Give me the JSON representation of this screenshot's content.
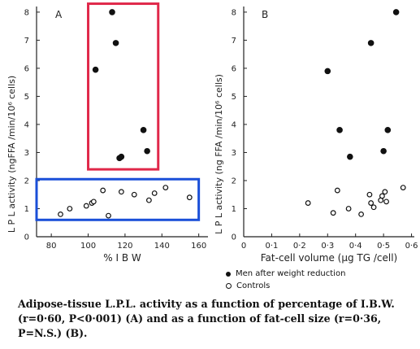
{
  "chart_data": [
    {
      "type": "scatter",
      "panel_label": "A",
      "xlabel": "% I B W",
      "ylabel": "L P L activity (ngFFA /min/10⁶ cells)",
      "xlim": [
        72,
        165
      ],
      "ylim": [
        0,
        8.2
      ],
      "xticks": [
        80,
        100,
        120,
        140,
        160
      ],
      "yticks": [
        1,
        2,
        3,
        4,
        5,
        6,
        7,
        8
      ],
      "series": [
        {
          "name": "Men after weight reduction",
          "marker": "filled",
          "points": [
            [
              104,
              5.95
            ],
            [
              113,
              8.0
            ],
            [
              115,
              6.9
            ],
            [
              117,
              2.8
            ],
            [
              118,
              2.85
            ],
            [
              130,
              3.8
            ],
            [
              132,
              3.05
            ]
          ]
        },
        {
          "name": "Controls",
          "marker": "open",
          "points": [
            [
              85,
              0.8
            ],
            [
              90,
              1.0
            ],
            [
              99,
              1.1
            ],
            [
              102,
              1.2
            ],
            [
              103,
              1.25
            ],
            [
              108,
              1.65
            ],
            [
              111,
              0.75
            ],
            [
              118,
              1.6
            ],
            [
              125,
              1.5
            ],
            [
              133,
              1.3
            ],
            [
              136,
              1.55
            ],
            [
              142,
              1.75
            ],
            [
              155,
              1.4
            ]
          ]
        }
      ],
      "highlight_boxes": [
        {
          "color": "#e0284a",
          "x_range": [
            100,
            138
          ],
          "y_range": [
            2.4,
            8.3
          ]
        },
        {
          "color": "#1a4fd8",
          "x_range": [
            72,
            160
          ],
          "y_range": [
            0.6,
            2.05
          ]
        }
      ]
    },
    {
      "type": "scatter",
      "panel_label": "B",
      "xlabel": "Fat-cell volume (µg TG /cell)",
      "ylabel": "L P L activity (ng FFA /min/10⁶ cells)",
      "xlim": [
        0.0,
        0.61
      ],
      "ylim": [
        0,
        8.2
      ],
      "xticks": [
        0.0,
        0.1,
        0.2,
        0.3,
        0.4,
        0.5,
        0.6
      ],
      "xtick_labels": [
        "0",
        "0·1",
        "0·2",
        "0·3",
        "0·4",
        "0·5",
        "0·6"
      ],
      "yticks": [
        1,
        2,
        3,
        4,
        5,
        6,
        7,
        8
      ],
      "series": [
        {
          "name": "Men after weight reduction",
          "marker": "filled",
          "points": [
            [
              0.3,
              5.9
            ],
            [
              0.343,
              3.8
            ],
            [
              0.38,
              2.85
            ],
            [
              0.455,
              6.9
            ],
            [
              0.5,
              3.05
            ],
            [
              0.515,
              3.8
            ],
            [
              0.545,
              8.0
            ]
          ]
        },
        {
          "name": "Controls",
          "marker": "open",
          "points": [
            [
              0.23,
              1.2
            ],
            [
              0.32,
              0.85
            ],
            [
              0.335,
              1.65
            ],
            [
              0.375,
              1.0
            ],
            [
              0.42,
              0.8
            ],
            [
              0.45,
              1.5
            ],
            [
              0.455,
              1.2
            ],
            [
              0.465,
              1.05
            ],
            [
              0.49,
              1.3
            ],
            [
              0.495,
              1.45
            ],
            [
              0.505,
              1.6
            ],
            [
              0.51,
              1.25
            ],
            [
              0.57,
              1.75
            ]
          ]
        }
      ]
    }
  ],
  "legend": {
    "men": "Men after weight reduction",
    "controls": "Controls"
  },
  "caption": "Adipose-tissue L.P.L. activity as a function of percentage of I.B.W. (r=0·60, P<0·001) (A) and as a function of fat-cell size (r=0·36, P=N.S.) (B)."
}
